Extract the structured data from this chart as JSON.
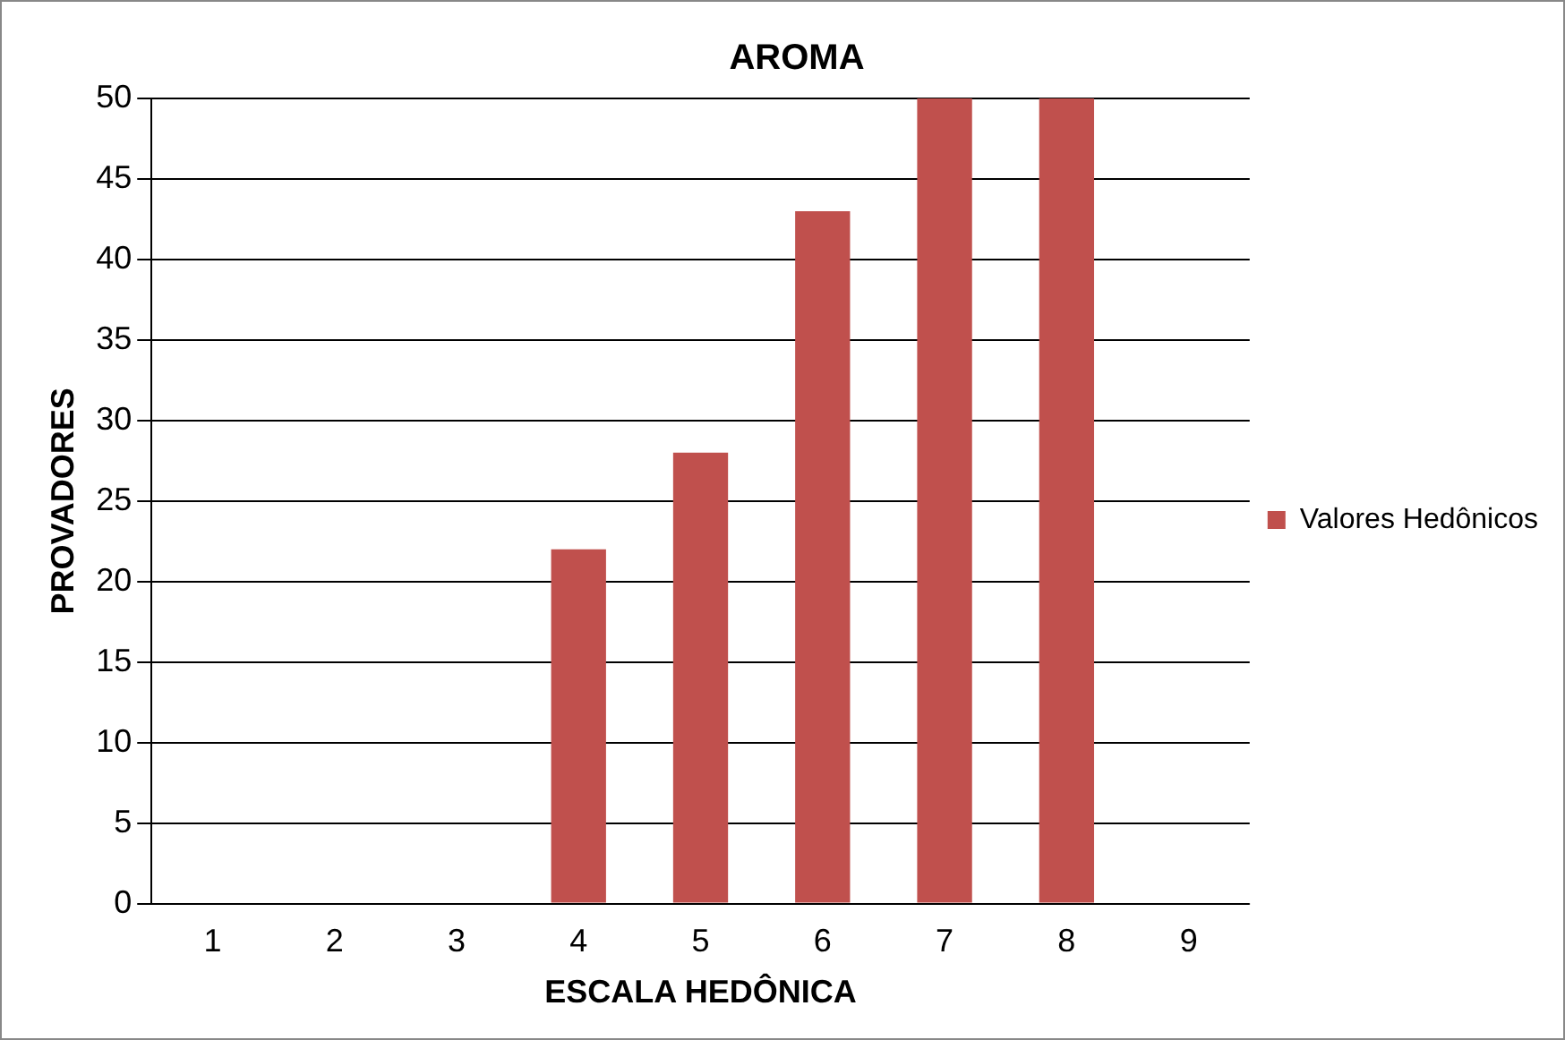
{
  "chart_data": {
    "type": "bar",
    "title": "AROMA",
    "xlabel": "ESCALA HEDÔNICA",
    "ylabel": "PROVADORES",
    "categories": [
      "1",
      "2",
      "3",
      "4",
      "5",
      "6",
      "7",
      "8",
      "9"
    ],
    "series": [
      {
        "name": "Valores Hedônicos",
        "color": "#c0504d",
        "values": [
          0,
          0,
          0,
          22,
          28,
          43,
          50,
          50,
          0
        ]
      }
    ],
    "ylim": [
      0,
      50
    ],
    "yticks": [
      0,
      5,
      10,
      15,
      20,
      25,
      30,
      35,
      40,
      45,
      50
    ],
    "grid": "y",
    "legend": "right"
  }
}
